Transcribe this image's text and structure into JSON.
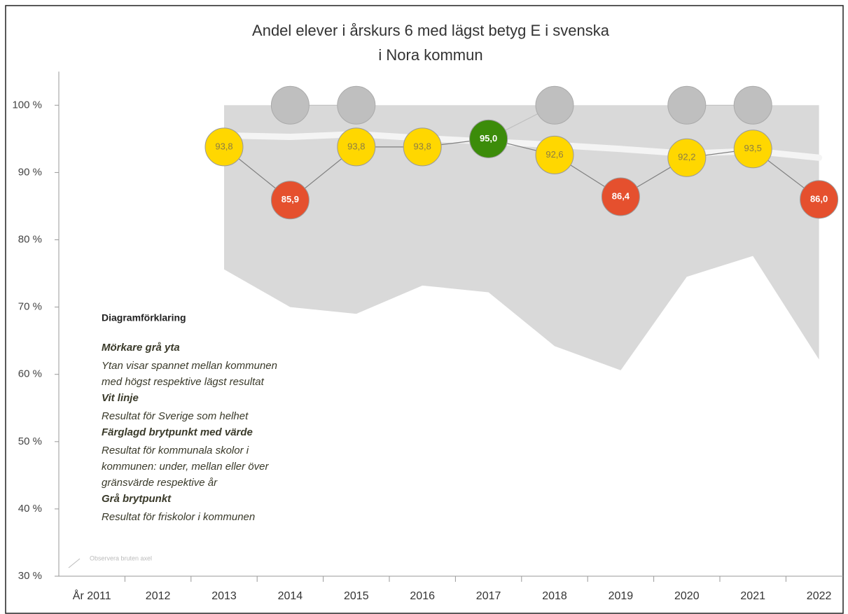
{
  "chart_data": {
    "type": "line",
    "title": [
      "Andel elever i årskurs 6 med lägst betyg E i svenska",
      "i Nora kommun"
    ],
    "categories": [
      "År 2011",
      "2012",
      "2013",
      "2014",
      "2015",
      "2016",
      "2017",
      "2018",
      "2019",
      "2020",
      "2021",
      "2022"
    ],
    "ylim": [
      30,
      105
    ],
    "yticks": [
      {
        "value": 30,
        "label": "30 %"
      },
      {
        "value": 40,
        "label": "40 %"
      },
      {
        "value": 50,
        "label": "50 %"
      },
      {
        "value": 60,
        "label": "60 %"
      },
      {
        "value": 70,
        "label": "70 %"
      },
      {
        "value": 80,
        "label": "80 %"
      },
      {
        "value": 90,
        "label": "90 %"
      },
      {
        "value": 100,
        "label": "100 %"
      }
    ],
    "range": {
      "color": "#d9d9d9",
      "max": [
        null,
        null,
        100,
        100,
        100,
        100,
        100,
        100,
        100,
        100,
        100,
        100
      ],
      "min": [
        null,
        null,
        75.6,
        70,
        69,
        73.2,
        72.2,
        64.2,
        60.6,
        74.5,
        77.6,
        62.2
      ]
    },
    "series": [
      {
        "color": "#f4f4f4",
        "values": [
          null,
          null,
          95.5,
          95.3,
          95.7,
          95.1,
          94.6,
          94.1,
          93.5,
          92.8,
          93.2,
          92.2
        ]
      },
      {
        "color": "#bfbfbf",
        "values": [
          null,
          null,
          null,
          100,
          100,
          null,
          95,
          100,
          null,
          100,
          100,
          null
        ]
      },
      {
        "color": "#808080",
        "values": [
          null,
          null,
          93.8,
          85.9,
          93.8,
          93.8,
          95.0,
          92.6,
          86.4,
          92.2,
          93.5,
          86.0
        ],
        "value_labels": [
          null,
          null,
          "93,8",
          "85,9",
          "93,8",
          "93,8",
          "95,0",
          "92,6",
          "86,4",
          "92,2",
          "93,5",
          "86,0"
        ],
        "point_colors": [
          null,
          null,
          "#ffd700",
          "#e5502e",
          "#ffd700",
          "#ffd700",
          "#3c8c0a",
          "#ffd700",
          "#e5502e",
          "#ffd700",
          "#ffd700",
          "#e5502e"
        ],
        "label_colors": [
          null,
          null,
          "#8c7d45",
          "#ffffff",
          "#8c7d45",
          "#8c7d45",
          "#ffffff",
          "#8c7d45",
          "#ffffff",
          "#8c7d45",
          "#8c7d45",
          "#ffffff"
        ]
      }
    ],
    "legend": {
      "title": "Diagramförklaring",
      "items": [
        {
          "heading": "Mörkare grå yta",
          "lines": [
            "Ytan visar spannet mellan kommunen",
            "med högst respektive  lägst resultat"
          ]
        },
        {
          "heading": "Vit linje",
          "lines": [
            "Resultat för Sverige som helhet"
          ]
        },
        {
          "heading": "Färglagd brytpunkt med värde",
          "lines": [
            "Resultat för kommunala skolor i",
            "kommunen: under, mellan eller över",
            "gränsvärde respektive  år"
          ]
        },
        {
          "heading": "Grå brytpunkt",
          "lines": [
            "Resultat för friskolor i kommunen"
          ]
        }
      ]
    },
    "note": "Observera bruten axel"
  }
}
